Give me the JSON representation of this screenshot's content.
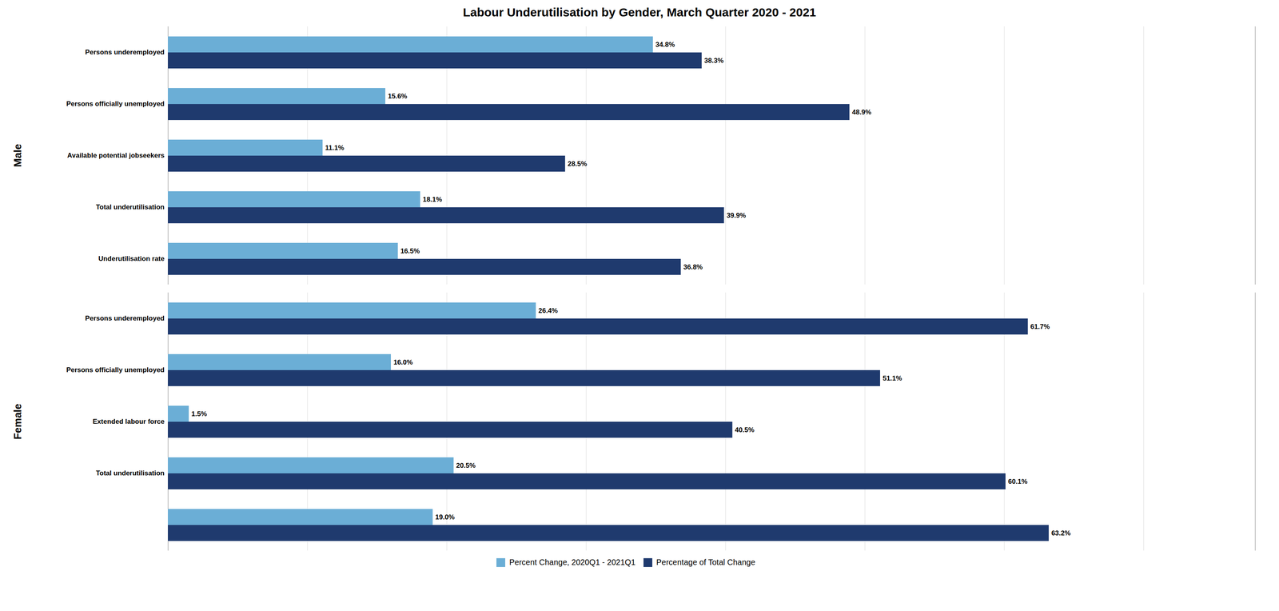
{
  "chart_data": [
    {
      "type": "bar",
      "orientation": "horizontal",
      "title": "Labour Underutilisation by Gender, March Quarter 2020 - 2021",
      "ylabel": "Male",
      "categories": [
        "Persons underemployed",
        "Persons officially unemployed",
        "Available potential jobseekers",
        "Total underutilisation",
        "Underutilisation rate"
      ],
      "series": [
        {
          "name": "Percent Change, 2020Q1 - 2021Q1",
          "color": "#6BAED6",
          "values": [
            34.8,
            15.6,
            11.1,
            18.1,
            16.5
          ],
          "value_labels": [
            "34.8%",
            "15.6%",
            "11.1%",
            "18.1%",
            "16.5%"
          ]
        },
        {
          "name": "Percentage of Total Change",
          "color": "#1F3A6E",
          "values": [
            38.3,
            48.9,
            28.5,
            39.9,
            36.8
          ],
          "value_labels": [
            "38.3%",
            "48.9%",
            "28.5%",
            "39.9%",
            "36.8%"
          ]
        }
      ],
      "xlim": [
        0,
        78
      ],
      "xticks": [
        0,
        10,
        20,
        30,
        40,
        50,
        60,
        70
      ],
      "grid": true,
      "data_labels": true,
      "tick_labels": "y"
    },
    {
      "type": "bar",
      "orientation": "horizontal",
      "ylabel": "Female",
      "categories": [
        "Persons underemployed",
        "Persons officially unemployed",
        "Extended labour force",
        "Total underutilisation",
        null
      ],
      "series": [
        {
          "name": "Percent Change, 2020Q1 - 2021Q1",
          "color": "#6BAED6",
          "values": [
            26.4,
            16.0,
            1.5,
            20.5,
            19.0
          ],
          "value_labels": [
            "26.4%",
            "16.0%",
            "1.5%",
            "20.5%",
            "19.0%"
          ]
        },
        {
          "name": "Percentage of Total Change",
          "color": "#1F3A6E",
          "values": [
            61.7,
            51.1,
            40.5,
            60.1,
            63.2
          ],
          "value_labels": [
            "61.7%",
            "51.1%",
            "40.5%",
            "60.1%",
            "63.2%"
          ]
        }
      ],
      "xlim": [
        0,
        78
      ],
      "xticks": [
        0,
        10,
        20,
        30,
        40,
        50,
        60,
        70
      ],
      "grid": true,
      "data_labels": true,
      "tick_labels": "y",
      "legend": "bottom"
    }
  ]
}
